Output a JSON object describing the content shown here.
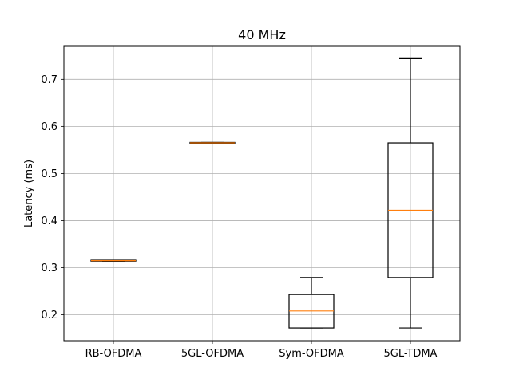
{
  "chart_data": {
    "type": "box",
    "title": "40 MHz",
    "xlabel": "",
    "ylabel": "Latency (ms)",
    "ylim": [
      0.145,
      0.77
    ],
    "yticks": [
      0.2,
      0.3,
      0.4,
      0.5,
      0.6,
      0.7
    ],
    "ytick_labels": [
      "0.2",
      "0.3",
      "0.4",
      "0.5",
      "0.6",
      "0.7"
    ],
    "grid": true,
    "categories": [
      "RB-OFDMA",
      "5GL-OFDMA",
      "Sym-OFDMA",
      "5GL-TDMA"
    ],
    "boxes": [
      {
        "label": "RB-OFDMA",
        "whislo": 0.314,
        "q1": 0.314,
        "med": 0.315,
        "q3": 0.316,
        "whishi": 0.316
      },
      {
        "label": "5GL-OFDMA",
        "whislo": 0.564,
        "q1": 0.564,
        "med": 0.565,
        "q3": 0.566,
        "whishi": 0.566
      },
      {
        "label": "Sym-OFDMA",
        "whislo": 0.172,
        "q1": 0.172,
        "med": 0.208,
        "q3": 0.243,
        "whishi": 0.279
      },
      {
        "label": "5GL-TDMA",
        "whislo": 0.172,
        "q1": 0.279,
        "med": 0.422,
        "q3": 0.565,
        "whishi": 0.744
      }
    ],
    "colors": {
      "box": "#000000",
      "median": "#ff7f0e",
      "grid": "#b0b0b0"
    }
  }
}
